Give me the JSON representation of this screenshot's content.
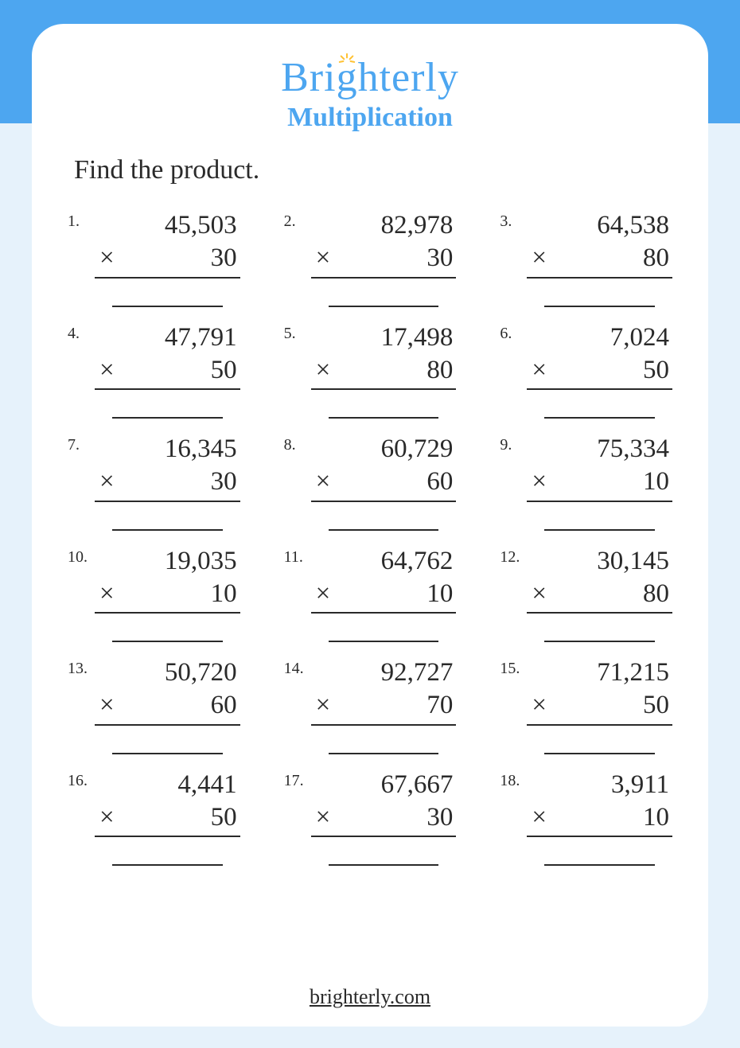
{
  "brand": {
    "name": "Brighterly",
    "accent_color": "#4da6f0",
    "sun_color": "#ffc233"
  },
  "worksheet": {
    "title": "Multiplication",
    "instruction": "Find the product.",
    "operator_symbol": "×",
    "footer_url": "brighterly.com",
    "text_color": "#2a2a2a",
    "background_color": "#ffffff",
    "page_bg_top": "#4da6f0",
    "page_bg_bottom": "#e6f2fb"
  },
  "problems": [
    {
      "n": "1.",
      "a": "45,503",
      "b": "30"
    },
    {
      "n": "2.",
      "a": "82,978",
      "b": "30"
    },
    {
      "n": "3.",
      "a": "64,538",
      "b": "80"
    },
    {
      "n": "4.",
      "a": "47,791",
      "b": "50"
    },
    {
      "n": "5.",
      "a": "17,498",
      "b": "80"
    },
    {
      "n": "6.",
      "a": "7,024",
      "b": "50"
    },
    {
      "n": "7.",
      "a": "16,345",
      "b": "30"
    },
    {
      "n": "8.",
      "a": "60,729",
      "b": "60"
    },
    {
      "n": "9.",
      "a": "75,334",
      "b": "10"
    },
    {
      "n": "10.",
      "a": "19,035",
      "b": "10"
    },
    {
      "n": "11.",
      "a": "64,762",
      "b": "10"
    },
    {
      "n": "12.",
      "a": "30,145",
      "b": "80"
    },
    {
      "n": "13.",
      "a": "50,720",
      "b": "60"
    },
    {
      "n": "14.",
      "a": "92,727",
      "b": "70"
    },
    {
      "n": "15.",
      "a": "71,215",
      "b": "50"
    },
    {
      "n": "16.",
      "a": "4,441",
      "b": "50"
    },
    {
      "n": "17.",
      "a": "67,667",
      "b": "30"
    },
    {
      "n": "18.",
      "a": "3,911",
      "b": "10"
    }
  ]
}
